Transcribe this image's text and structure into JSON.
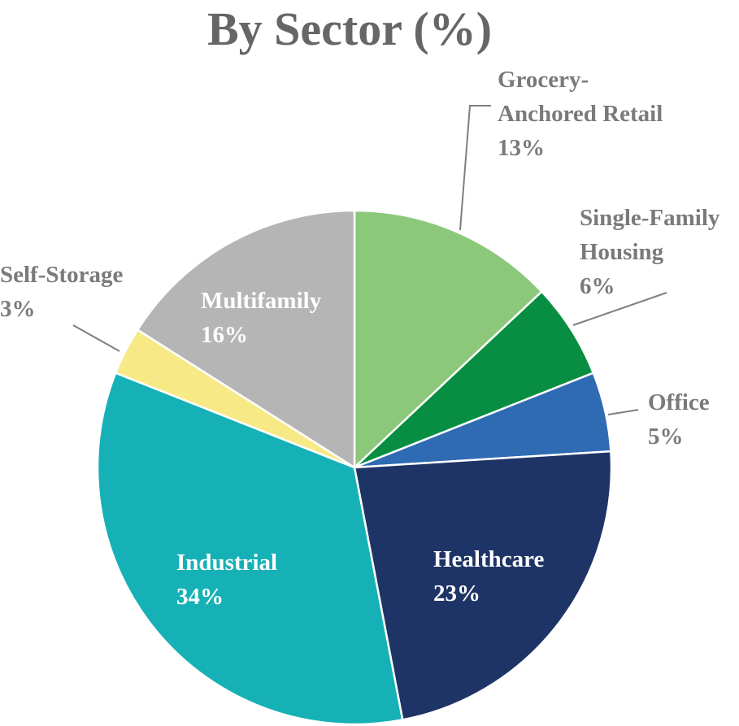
{
  "chart_data": {
    "type": "pie",
    "title": "By Sector (%)",
    "slices": [
      {
        "name": "Grocery-Anchored Retail",
        "label_lines": [
          "Grocery-",
          "Anchored Retail"
        ],
        "value": 13,
        "value_label": "13%",
        "color": "#8CC87A",
        "label_color": "#7a7a7a"
      },
      {
        "name": "Single-Family Housing",
        "label_lines": [
          "Single-Family",
          "Housing"
        ],
        "value": 6,
        "value_label": "6%",
        "color": "#078E42",
        "label_color": "#7a7a7a"
      },
      {
        "name": "Office",
        "label_lines": [
          "Office"
        ],
        "value": 5,
        "value_label": "5%",
        "color": "#2F6BB3",
        "label_color": "#7a7a7a"
      },
      {
        "name": "Healthcare",
        "label_lines": [
          "Healthcare"
        ],
        "value": 23,
        "value_label": "23%",
        "color": "#1F3466",
        "label_color": "#ffffff"
      },
      {
        "name": "Industrial",
        "label_lines": [
          "Industrial"
        ],
        "value": 34,
        "value_label": "34%",
        "color": "#16B1B6",
        "label_color": "#ffffff"
      },
      {
        "name": "Self-Storage",
        "label_lines": [
          "Self-Storage"
        ],
        "value": 3,
        "value_label": "3%",
        "color": "#F7EA86",
        "label_color": "#7a7a7a"
      },
      {
        "name": "Multifamily",
        "label_lines": [
          "Multifamily"
        ],
        "value": 16,
        "value_label": "16%",
        "color": "#B5B5B5",
        "label_color": "#ffffff"
      }
    ]
  }
}
